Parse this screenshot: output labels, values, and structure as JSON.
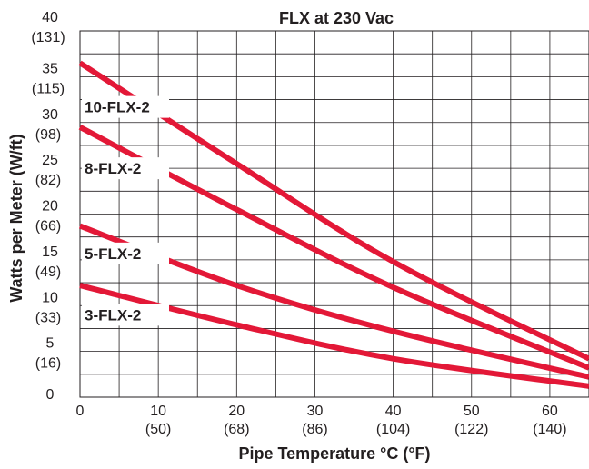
{
  "chart_data": {
    "type": "line",
    "title": "FLX at 230 Vac",
    "xlabel": "Pipe Temperature °C (°F)",
    "ylabel": "Watts per Meter (W/ft)",
    "xlim": [
      0,
      65
    ],
    "ylim": [
      0,
      40
    ],
    "grid": true,
    "x_ticks": [
      {
        "value": 0,
        "label": "0",
        "sub": ""
      },
      {
        "value": 10,
        "label": "10",
        "sub": "(50)"
      },
      {
        "value": 20,
        "label": "20",
        "sub": "(68)"
      },
      {
        "value": 30,
        "label": "30",
        "sub": "(86)"
      },
      {
        "value": 40,
        "label": "40",
        "sub": "(104)"
      },
      {
        "value": 50,
        "label": "50",
        "sub": "(122)"
      },
      {
        "value": 60,
        "label": "60",
        "sub": "(140)"
      }
    ],
    "y_ticks": [
      {
        "value": 0,
        "label": "0",
        "sub": ""
      },
      {
        "value": 5,
        "label": "5",
        "sub": "(16)"
      },
      {
        "value": 10,
        "label": "10",
        "sub": "(33)"
      },
      {
        "value": 15,
        "label": "15",
        "sub": "(49)"
      },
      {
        "value": 20,
        "label": "20",
        "sub": "(66)"
      },
      {
        "value": 25,
        "label": "25",
        "sub": "(82)"
      },
      {
        "value": 30,
        "label": "30",
        "sub": "(98)"
      },
      {
        "value": 35,
        "label": "35",
        "sub": "(115)"
      },
      {
        "value": 40,
        "label": "40",
        "sub": "(131)"
      }
    ],
    "series": [
      {
        "name": "10-FLX-2",
        "x": [
          0,
          20,
          40,
          65
        ],
        "values": [
          36.5,
          25.5,
          14.8,
          4.2
        ],
        "label_at": 31.5
      },
      {
        "name": "8-FLX-2",
        "x": [
          0,
          20,
          40,
          65
        ],
        "values": [
          29.5,
          20.5,
          12,
          3.2
        ],
        "label_at": 24.8
      },
      {
        "name": "5-FLX-2",
        "x": [
          0,
          20,
          40,
          65
        ],
        "values": [
          18.7,
          12.2,
          7.2,
          2.2
        ],
        "label_at": 15.5
      },
      {
        "name": "3-FLX-2",
        "x": [
          0,
          20,
          40,
          65
        ],
        "values": [
          12.2,
          7.9,
          4.2,
          1.2
        ],
        "label_at": 8.8
      }
    ],
    "line_color": "#e31837"
  }
}
